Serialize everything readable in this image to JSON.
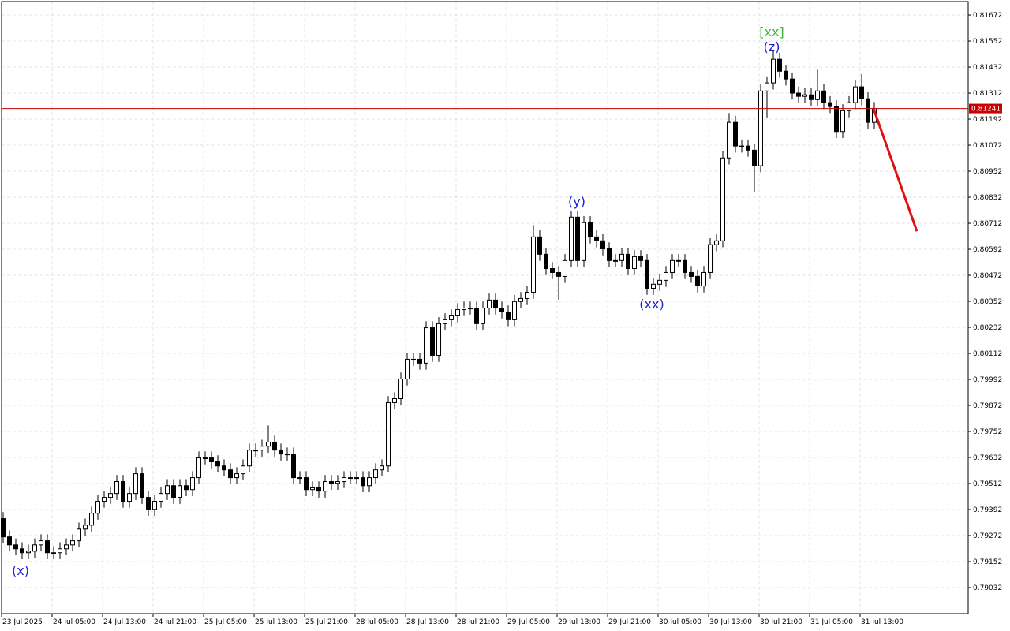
{
  "chart_data": {
    "type": "candlestick",
    "ylim": [
      0.78912,
      0.81734
    ],
    "yticks": [
      0.81672,
      0.81552,
      0.81432,
      0.81312,
      0.81192,
      0.81072,
      0.80952,
      0.80832,
      0.80712,
      0.80592,
      0.80472,
      0.80352,
      0.80232,
      0.80112,
      0.79992,
      0.79872,
      0.79752,
      0.79632,
      0.79512,
      0.79392,
      0.79272,
      0.79152,
      0.79032
    ],
    "grid": true,
    "xtick_labels": [
      "23 Jul 2025",
      "24 Jul 05:00",
      "24 Jul 13:00",
      "24 Jul 21:00",
      "25 Jul 05:00",
      "25 Jul 13:00",
      "25 Jul 21:00",
      "28 Jul 05:00",
      "28 Jul 13:00",
      "28 Jul 21:00",
      "29 Jul 05:00",
      "29 Jul 13:00",
      "29 Jul 21:00",
      "30 Jul 05:00",
      "30 Jul 13:00",
      "30 Jul 21:00",
      "31 Jul 05:00",
      "31 Jul 13:00"
    ],
    "up_color": "#ffffff",
    "down_color": "#000000",
    "open": [
      0.7935,
      0.79266,
      0.79229,
      0.79211,
      0.79193,
      0.792,
      0.79229,
      0.79248,
      0.79193,
      0.79193,
      0.79211,
      0.79229,
      0.79248,
      0.79302,
      0.7932,
      0.79375,
      0.7943,
      0.79448,
      0.79466,
      0.79521,
      0.7943,
      0.79466,
      0.79557,
      0.79448,
      0.79393,
      0.7943,
      0.79466,
      0.79502,
      0.79448,
      0.79502,
      0.79484,
      0.79539,
      0.7963,
      0.7963,
      0.79612,
      0.79593,
      0.79575,
      0.79539,
      0.79557,
      0.79593,
      0.79666,
      0.79666,
      0.79684,
      0.79703,
      0.79666,
      0.79648,
      0.79648,
      0.79539,
      0.79539,
      0.79484,
      0.79492,
      0.79477,
      0.79521,
      0.79513,
      0.79521,
      0.79539,
      0.79539,
      0.79539,
      0.79502,
      0.79539,
      0.79575,
      0.79593,
      0.79885,
      0.79903,
      0.79994,
      0.80085,
      0.80085,
      0.80067,
      0.8023,
      0.80103,
      0.80249,
      0.80267,
      0.80285,
      0.80314,
      0.80321,
      0.80321,
      0.80249,
      0.80321,
      0.80358,
      0.80321,
      0.80303,
      0.80267,
      0.80351,
      0.80365,
      0.80394,
      0.80649,
      0.80569,
      0.80503,
      0.80485,
      0.80467,
      0.8054,
      0.8074,
      0.8054,
      0.80715,
      0.80649,
      0.80631,
      0.80594,
      0.8054,
      0.8054,
      0.80569,
      0.80503,
      0.80558,
      0.8054,
      0.80412,
      0.80431,
      0.80449,
      0.80485,
      0.8054,
      0.8054,
      0.80485,
      0.80467,
      0.80423,
      0.80485,
      0.80613,
      0.80631,
      0.81013,
      0.81177,
      0.81068,
      0.81068,
      0.81049,
      0.80977,
      0.81322,
      0.81359,
      0.81468,
      0.81413,
      0.81377,
      0.81312,
      0.81297,
      0.81304,
      0.81282,
      0.81322,
      0.81268,
      0.8125,
      0.81135,
      0.81231,
      0.81268,
      0.81341,
      0.81286,
      0.81177
    ],
    "high": [
      0.7938,
      0.79296,
      0.79259,
      0.79241,
      0.7923,
      0.79259,
      0.79278,
      0.79278,
      0.79223,
      0.79241,
      0.79259,
      0.79278,
      0.79332,
      0.7935,
      0.79405,
      0.7946,
      0.79478,
      0.79496,
      0.79551,
      0.79551,
      0.79496,
      0.79587,
      0.79587,
      0.79478,
      0.7946,
      0.79496,
      0.79532,
      0.79532,
      0.79532,
      0.79532,
      0.79569,
      0.7966,
      0.7966,
      0.7966,
      0.79642,
      0.79623,
      0.79605,
      0.79587,
      0.79623,
      0.79696,
      0.79696,
      0.79714,
      0.7978,
      0.79733,
      0.79696,
      0.79678,
      0.79678,
      0.79569,
      0.79569,
      0.79522,
      0.79522,
      0.79551,
      0.79551,
      0.79551,
      0.79569,
      0.79569,
      0.79569,
      0.79569,
      0.79569,
      0.79605,
      0.79623,
      0.79915,
      0.79933,
      0.80024,
      0.80115,
      0.80115,
      0.80115,
      0.8026,
      0.8026,
      0.80279,
      0.80297,
      0.80315,
      0.80344,
      0.80351,
      0.80351,
      0.80351,
      0.80351,
      0.80388,
      0.80388,
      0.80351,
      0.80333,
      0.80381,
      0.80395,
      0.80424,
      0.80704,
      0.80679,
      0.80599,
      0.80533,
      0.80515,
      0.8057,
      0.8077,
      0.8077,
      0.80745,
      0.80745,
      0.80679,
      0.80661,
      0.80624,
      0.8057,
      0.80599,
      0.80599,
      0.80588,
      0.80588,
      0.8057,
      0.80461,
      0.80479,
      0.80515,
      0.8057,
      0.8057,
      0.8057,
      0.80515,
      0.80497,
      0.80515,
      0.80643,
      0.80661,
      0.81043,
      0.8122,
      0.81207,
      0.81098,
      0.81098,
      0.81079,
      0.81352,
      0.81389,
      0.81512,
      0.81498,
      0.81443,
      0.81407,
      0.81342,
      0.81334,
      0.81334,
      0.8142,
      0.81352,
      0.81298,
      0.8128,
      0.81261,
      0.81298,
      0.81371,
      0.814,
      0.81316,
      0.81271
    ],
    "low": [
      0.79236,
      0.79199,
      0.79181,
      0.79163,
      0.79163,
      0.7917,
      0.79199,
      0.79163,
      0.79163,
      0.79163,
      0.79181,
      0.79199,
      0.79218,
      0.79272,
      0.7929,
      0.79345,
      0.794,
      0.79418,
      0.79436,
      0.794,
      0.794,
      0.79436,
      0.79418,
      0.79363,
      0.79363,
      0.794,
      0.79436,
      0.79418,
      0.79418,
      0.79454,
      0.79454,
      0.79509,
      0.796,
      0.79582,
      0.79563,
      0.79545,
      0.79509,
      0.79509,
      0.79527,
      0.79563,
      0.79636,
      0.79636,
      0.79654,
      0.79636,
      0.79618,
      0.79618,
      0.79509,
      0.79509,
      0.79454,
      0.79454,
      0.79447,
      0.79447,
      0.79483,
      0.79483,
      0.79491,
      0.79509,
      0.79509,
      0.79472,
      0.79472,
      0.79509,
      0.79545,
      0.79563,
      0.79855,
      0.79873,
      0.79964,
      0.80055,
      0.80037,
      0.80037,
      0.80073,
      0.80073,
      0.80219,
      0.80237,
      0.80255,
      0.80284,
      0.80291,
      0.80219,
      0.80219,
      0.80291,
      0.80291,
      0.80273,
      0.80237,
      0.80237,
      0.80321,
      0.80335,
      0.80364,
      0.80539,
      0.80473,
      0.80455,
      0.8036,
      0.80437,
      0.8051,
      0.8051,
      0.8051,
      0.80619,
      0.80601,
      0.80564,
      0.8051,
      0.8051,
      0.8051,
      0.80473,
      0.80473,
      0.8051,
      0.80382,
      0.80382,
      0.80401,
      0.80419,
      0.80455,
      0.8051,
      0.80455,
      0.80437,
      0.80393,
      0.80393,
      0.80455,
      0.80583,
      0.80601,
      0.80983,
      0.81038,
      0.81038,
      0.81019,
      0.80857,
      0.80947,
      0.812,
      0.81329,
      0.81383,
      0.81347,
      0.81282,
      0.81267,
      0.81267,
      0.81252,
      0.81252,
      0.81238,
      0.8122,
      0.81105,
      0.81105,
      0.81201,
      0.81238,
      0.81256,
      0.81147,
      0.81147
    ],
    "close": [
      0.79266,
      0.79229,
      0.79211,
      0.79193,
      0.792,
      0.79229,
      0.79248,
      0.79193,
      0.79193,
      0.79211,
      0.79229,
      0.79248,
      0.79302,
      0.7932,
      0.79375,
      0.7943,
      0.79448,
      0.79466,
      0.79521,
      0.7943,
      0.79466,
      0.79557,
      0.79448,
      0.79393,
      0.7943,
      0.79466,
      0.79502,
      0.79448,
      0.79502,
      0.79484,
      0.79539,
      0.7963,
      0.7963,
      0.79612,
      0.79593,
      0.79575,
      0.79539,
      0.79557,
      0.79593,
      0.79666,
      0.79666,
      0.79684,
      0.79703,
      0.79666,
      0.79648,
      0.79648,
      0.79539,
      0.79539,
      0.79484,
      0.79492,
      0.79477,
      0.79521,
      0.79513,
      0.79521,
      0.79539,
      0.79539,
      0.79539,
      0.79502,
      0.79539,
      0.79575,
      0.79593,
      0.79885,
      0.79903,
      0.79994,
      0.80085,
      0.80085,
      0.80067,
      0.8023,
      0.80103,
      0.80249,
      0.80267,
      0.80285,
      0.80314,
      0.80321,
      0.80321,
      0.80249,
      0.80321,
      0.80358,
      0.80321,
      0.80303,
      0.80267,
      0.80351,
      0.80365,
      0.80394,
      0.80649,
      0.80569,
      0.80503,
      0.80485,
      0.80467,
      0.8054,
      0.8074,
      0.8054,
      0.80715,
      0.80649,
      0.80631,
      0.80594,
      0.8054,
      0.8054,
      0.80569,
      0.80503,
      0.80558,
      0.8054,
      0.80412,
      0.80431,
      0.80449,
      0.80485,
      0.8054,
      0.8054,
      0.80485,
      0.80467,
      0.80423,
      0.80485,
      0.80613,
      0.80631,
      0.81013,
      0.81177,
      0.81068,
      0.81068,
      0.81049,
      0.80977,
      0.81322,
      0.81359,
      0.81468,
      0.81413,
      0.81377,
      0.81312,
      0.81297,
      0.81304,
      0.81282,
      0.81322,
      0.81268,
      0.8125,
      0.81135,
      0.81231,
      0.81268,
      0.81341,
      0.81286,
      0.81177,
      0.81241
    ],
    "last_price": 0.81241,
    "last_price_color": "#c80000",
    "forecast": {
      "values": [
        0.81241,
        0.80675
      ],
      "color": "#e01010"
    },
    "annotations": [
      {
        "text": "(x)",
        "color": "#2020d0"
      },
      {
        "text": "(y)",
        "color": "#2020d0"
      },
      {
        "text": "(xx)",
        "color": "#2020d0"
      },
      {
        "text": "(z)",
        "color": "#2020d0"
      },
      {
        "text": "[xx]",
        "color": "#3cb43c"
      }
    ]
  }
}
